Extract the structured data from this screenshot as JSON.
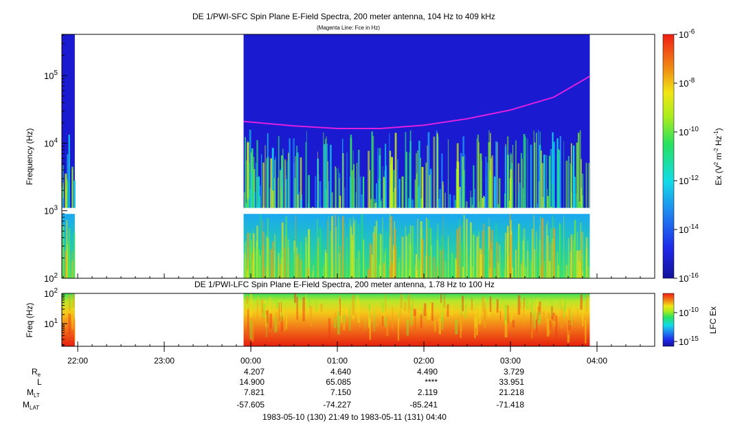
{
  "chart_data": [
    {
      "type": "heatmap",
      "title": "DE 1/PWI-SFC  Spin Plane E-Field Spectra, 200 meter antenna, 104 Hz to 409 kHz",
      "subtitle": "(Magenta Line: Fce in Hz)",
      "ylabel": "Frequency (Hz)",
      "y_scale": "log",
      "ylim": [
        100,
        409000
      ],
      "y_ticks": [
        "10^2",
        "10^3",
        "10^4",
        "10^5"
      ],
      "colorbar": {
        "label": "Ex (V^2 m^-2 Hz^-1)",
        "scale": "log",
        "range": [
          1e-16,
          1e-06
        ],
        "ticks": [
          "10^-6",
          "10^-8",
          "10^-10",
          "10^-12",
          "10^-14",
          "10^-16"
        ]
      },
      "data_intervals": [
        [
          "21:49",
          "21:58"
        ],
        [
          "23:55",
          "03:55"
        ]
      ],
      "gap_band_hz": [
        900,
        1100
      ],
      "fce_line": {
        "name": "Fce",
        "color": "#e020e0",
        "points": [
          {
            "t": "23:55",
            "f": 21000
          },
          {
            "t": "00:30",
            "f": 18000
          },
          {
            "t": "01:00",
            "f": 16500
          },
          {
            "t": "01:30",
            "f": 16500
          },
          {
            "t": "02:00",
            "f": 18500
          },
          {
            "t": "02:30",
            "f": 23000
          },
          {
            "t": "03:00",
            "f": 31000
          },
          {
            "t": "03:30",
            "f": 48000
          },
          {
            "t": "03:55",
            "f": 98000
          }
        ]
      }
    },
    {
      "type": "heatmap",
      "title": "DE 1/PWI-LFC  Spin Plane E-Field Spectra, 200 meter antenna, 1.78 Hz to 100 Hz",
      "ylabel": "Freq (Hz)",
      "y_scale": "log",
      "ylim": [
        1.78,
        100
      ],
      "y_ticks": [
        "10^1",
        "10^2"
      ],
      "colorbar": {
        "label": "LFC Ex",
        "scale": "log",
        "ticks": [
          "10^-10",
          "10^-15"
        ]
      },
      "data_intervals": [
        [
          "21:49",
          "21:58"
        ],
        [
          "23:55",
          "03:55"
        ]
      ]
    }
  ],
  "time_axis": {
    "start": "21:49",
    "end": "04:40",
    "major_ticks": [
      "22:00",
      "23:00",
      "00:00",
      "01:00",
      "02:00",
      "03:00",
      "04:00"
    ]
  },
  "ephemeris": {
    "rows": [
      {
        "label": "R",
        "sub": "e",
        "values": [
          "4.207",
          "4.640",
          "4.490",
          "3.729"
        ]
      },
      {
        "label": "L",
        "sub": "",
        "values": [
          "14.900",
          "65.085",
          "****",
          "33.951"
        ]
      },
      {
        "label": "M",
        "sub": "LT",
        "values": [
          "7.821",
          "7.150",
          "2.119",
          "21.218"
        ]
      },
      {
        "label": "M",
        "sub": "LAT",
        "values": [
          "-57.605",
          "-74.227",
          "-85.241",
          "-71.418"
        ]
      }
    ],
    "times": [
      "00:00",
      "01:00",
      "02:00",
      "03:00"
    ]
  },
  "footer": "1983-05-10 (130) 21:49 to 1983-05-11 (131) 04:40",
  "colors": {
    "background_empty": "#ffffff",
    "spectrum_low": "#1a1ad0",
    "fce_line": "#e020e0"
  }
}
